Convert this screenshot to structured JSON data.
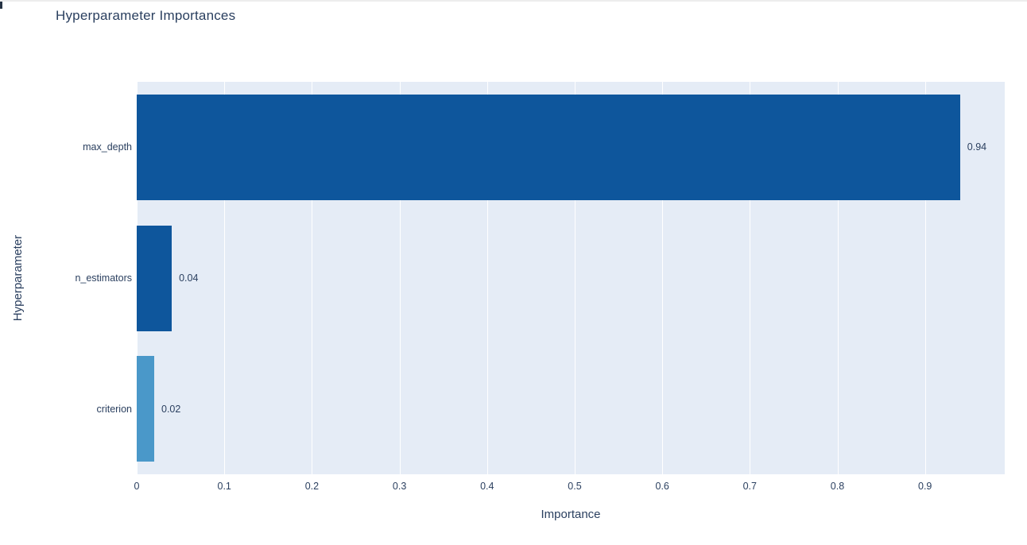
{
  "chart_data": {
    "type": "bar",
    "orientation": "horizontal",
    "title": "Hyperparameter Importances",
    "xlabel": "Importance",
    "ylabel": "Hyperparameter",
    "categories": [
      "max_depth",
      "n_estimators",
      "criterion"
    ],
    "values": [
      0.94,
      0.04,
      0.02
    ],
    "value_labels": [
      "0.94",
      "0.04",
      "0.02"
    ],
    "bar_colors": [
      "#0e569c",
      "#0e569c",
      "#4a98c9"
    ],
    "x_ticks": [
      {
        "value": 0.0,
        "label": "0"
      },
      {
        "value": 0.1,
        "label": "0.1"
      },
      {
        "value": 0.2,
        "label": "0.2"
      },
      {
        "value": 0.3,
        "label": "0.3"
      },
      {
        "value": 0.4,
        "label": "0.4"
      },
      {
        "value": 0.5,
        "label": "0.5"
      },
      {
        "value": 0.6,
        "label": "0.6"
      },
      {
        "value": 0.7,
        "label": "0.7"
      },
      {
        "value": 0.8,
        "label": "0.8"
      },
      {
        "value": 0.9,
        "label": "0.9"
      }
    ],
    "xlim": [
      0,
      0.991
    ],
    "grid": true,
    "legend": "none",
    "plot_bgcolor": "#e5ecf6",
    "grid_color": "#ffffff",
    "font_color": "#2a3f5f"
  }
}
